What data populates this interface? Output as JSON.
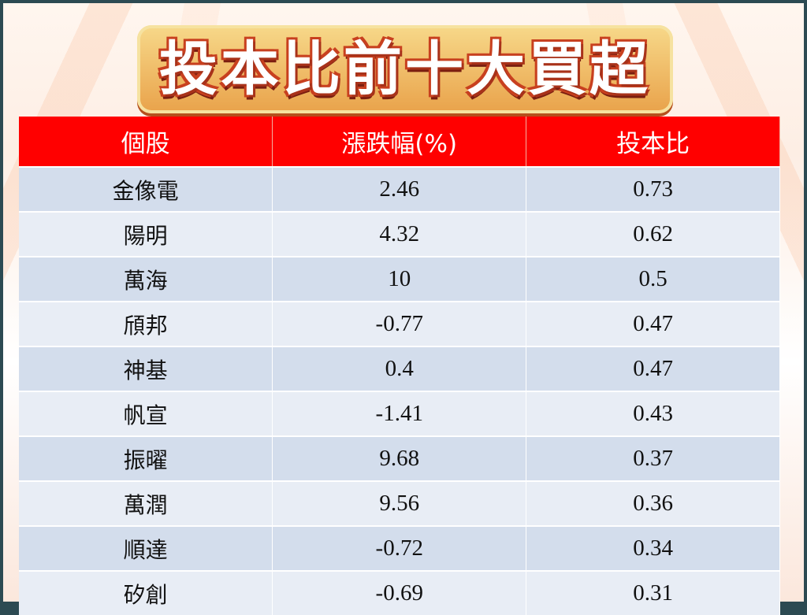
{
  "title": "投本比前十大買超",
  "table": {
    "headers": [
      "個股",
      "漲跌幅(%)",
      "投本比"
    ],
    "rows": [
      [
        "金像電",
        "2.46",
        "0.73"
      ],
      [
        "陽明",
        "4.32",
        "0.62"
      ],
      [
        "萬海",
        "10",
        "0.5"
      ],
      [
        "頎邦",
        "-0.77",
        "0.47"
      ],
      [
        "神基",
        "0.4",
        "0.47"
      ],
      [
        "帆宣",
        "-1.41",
        "0.43"
      ],
      [
        "振曜",
        "9.68",
        "0.37"
      ],
      [
        "萬潤",
        "9.56",
        "0.36"
      ],
      [
        "順達",
        "-0.72",
        "0.34"
      ],
      [
        "矽創",
        "-0.69",
        "0.31"
      ]
    ]
  },
  "colors": {
    "header": "#ff0000",
    "row_odd": "#d3ddec",
    "row_even": "#e8edf5"
  }
}
